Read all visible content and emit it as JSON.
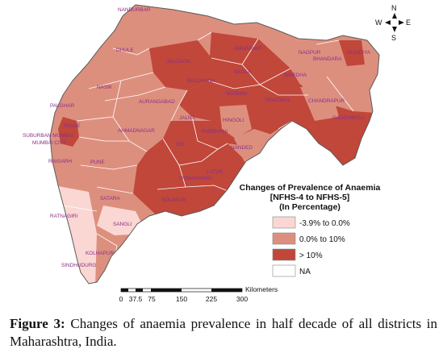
{
  "legend": {
    "title_lines": [
      "Changes of Prevalence of Anaemia",
      "[NFHS-4 to NFHS-5]",
      "(In Percentage)"
    ],
    "items": [
      {
        "label": "-3.9% to 0.0%",
        "color": "#fbd7d4"
      },
      {
        "label": "0.0% to 10%",
        "color": "#dd8f7e"
      },
      {
        "label": "> 10%",
        "color": "#c0473a"
      },
      {
        "label": "NA",
        "color": "#ffffff"
      }
    ]
  },
  "compass": {
    "north": "N",
    "south": "S",
    "east": "E",
    "west": "W"
  },
  "scale_bar": {
    "unit": "Kilometers",
    "ticks": [
      "0",
      "37.5",
      "75",
      "150",
      "225",
      "300"
    ]
  },
  "districts": [
    "NANDURBAR",
    "DHULE",
    "JALGAON",
    "AMARAVATI",
    "NAGPUR",
    "BHANDARA",
    "GONDIYA",
    "NASIK",
    "AKOLA",
    "BULDHANA",
    "WARDHA",
    "PALGHAR",
    "AURANGABAD",
    "WASHIM",
    "YAVATMAL",
    "CHANDRAPUR",
    "THANE",
    "HINGOLI",
    "GADCHIROLI",
    "SUBURBAN MUMBAI",
    "MUMBAI CITY",
    "AHMADNAGAR",
    "JALNA",
    "PARBHANI",
    "BID",
    "NANDED",
    "RAIGARH",
    "PUNE",
    "LATUR",
    "OSMANABAD",
    "SOLAPUR",
    "SATARA",
    "RATNAGIRI",
    "SANGLI",
    "KOLHAPUR",
    "SINDHUDURG"
  ],
  "caption": {
    "label": "Figure 3:",
    "text": " Changes of anaemia prevalence in half decade of all districts in Maharashtra, India."
  }
}
